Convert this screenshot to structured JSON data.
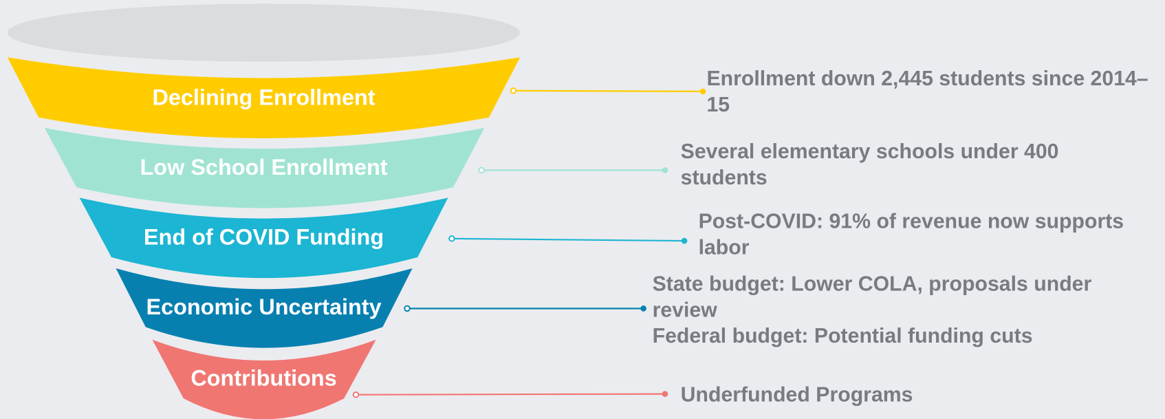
{
  "stages": [
    {
      "label": "Declining Enrollment",
      "color": "#FFCC00",
      "notes": [
        "Enrollment down 2,445 students since 2014–15"
      ]
    },
    {
      "label": "Low School Enrollment",
      "color": "#A0E3D3",
      "notes": [
        "Several elementary schools under 400 students"
      ]
    },
    {
      "label": "End of COVID Funding",
      "color": "#1CB5D3",
      "notes": [
        "Post-COVID: 91% of revenue now supports labor"
      ]
    },
    {
      "label": "Economic Uncertainty",
      "color": "#0780B0",
      "notes": [
        "State budget: Lower COLA, proposals under review",
        "Federal budget: Potential funding cuts"
      ]
    },
    {
      "label": "Contributions",
      "color": "#F07672",
      "notes": [
        "Underfunded Programs"
      ]
    }
  ]
}
